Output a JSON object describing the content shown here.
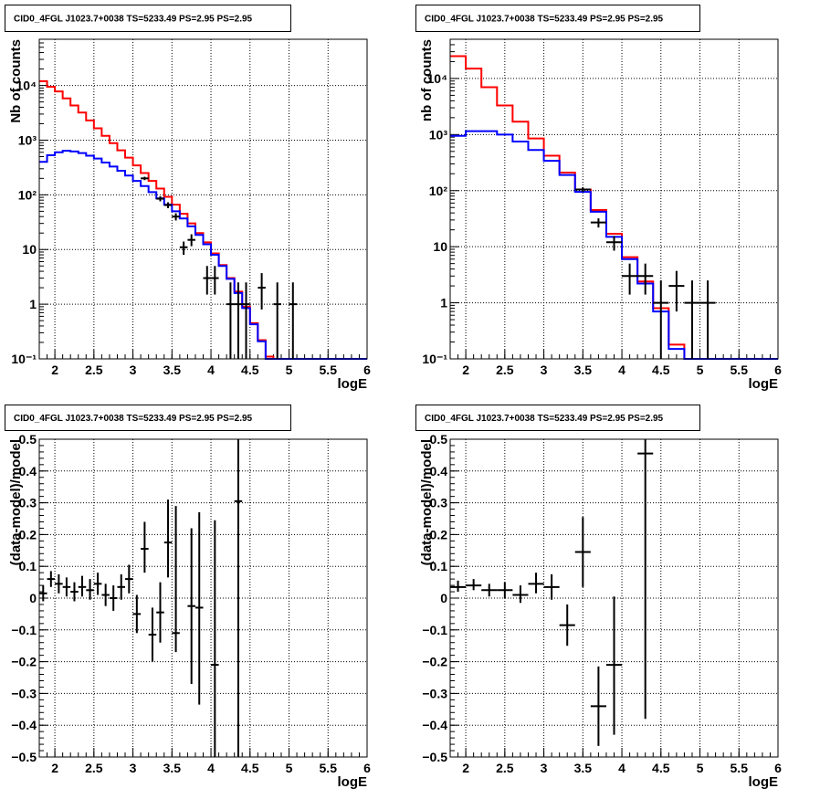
{
  "chart_data": [
    {
      "id": "top-left",
      "type": "step+errorbar",
      "title": "CID0_4FGL J1023.7+0038 TS=5233.49 PS=2.95 PS=2.95",
      "xlabel": "logE",
      "ylabel": "Nb of counts",
      "xlim": [
        1.8,
        6.0
      ],
      "ylim": [
        0.1,
        70000
      ],
      "yscale": "log",
      "grid": true,
      "xticks": [
        "2",
        "2.5",
        "3",
        "3.5",
        "4",
        "4.5",
        "5",
        "5.5",
        "6"
      ],
      "xtick_values": [
        2,
        2.5,
        3,
        3.5,
        4,
        4.5,
        5,
        5.5,
        6
      ],
      "yticks": [
        "10⁻¹",
        "1",
        "10",
        "10²",
        "10³",
        "10⁴"
      ],
      "ytick_values": [
        0.1,
        1,
        10,
        100,
        1000,
        10000
      ],
      "bin_edges": [
        1.8,
        1.9,
        2.0,
        2.1,
        2.2,
        2.3,
        2.4,
        2.5,
        2.6,
        2.7,
        2.8,
        2.9,
        3.0,
        3.1,
        3.2,
        3.3,
        3.4,
        3.5,
        3.6,
        3.7,
        3.8,
        3.9,
        4.0,
        4.1,
        4.2,
        4.3,
        4.4,
        4.5,
        4.6,
        4.7,
        4.8,
        4.9,
        5.0,
        5.1,
        5.2,
        5.3,
        5.4,
        5.5,
        5.6,
        5.7,
        5.8,
        5.9,
        6.0
      ],
      "series": [
        {
          "color": "#ff0000",
          "values": [
            12000,
            9500,
            7800,
            5800,
            4300,
            3200,
            2300,
            1650,
            1200,
            880,
            650,
            480,
            345,
            250,
            180,
            130,
            92,
            66,
            45,
            30,
            20,
            13.5,
            8.5,
            5.2,
            3.0,
            1.7,
            0.9,
            0.45,
            0.22,
            0.11,
            0.1,
            0.1,
            0.1,
            0.1,
            0.1,
            0.1,
            0.1,
            0.1,
            0.1,
            0.1,
            0.1,
            0.1
          ]
        },
        {
          "color": "#0000ff",
          "values": [
            400,
            530,
            600,
            640,
            620,
            580,
            520,
            460,
            390,
            330,
            275,
            225,
            180,
            145,
            112,
            86,
            66,
            50,
            37,
            26.5,
            18.5,
            12.5,
            8.0,
            5.0,
            2.9,
            1.6,
            0.85,
            0.43,
            0.21,
            0.1,
            0.1,
            0.1,
            0.1,
            0.1,
            0.1,
            0.1,
            0.1,
            0.1,
            0.1,
            0.1,
            0.1,
            0.1
          ]
        }
      ],
      "points": [
        {
          "x": 3.15,
          "y": 200,
          "xerr": 0.05,
          "ylo": 186,
          "yhi": 214
        },
        {
          "x": 3.35,
          "y": 85,
          "xerr": 0.05,
          "ylo": 76,
          "yhi": 94
        },
        {
          "x": 3.45,
          "y": 65,
          "xerr": 0.05,
          "ylo": 57,
          "yhi": 73
        },
        {
          "x": 3.55,
          "y": 40,
          "xerr": 0.05,
          "ylo": 34,
          "yhi": 46
        },
        {
          "x": 3.65,
          "y": 11,
          "xerr": 0.05,
          "ylo": 8,
          "yhi": 14
        },
        {
          "x": 3.75,
          "y": 15,
          "xerr": 0.05,
          "ylo": 11.5,
          "yhi": 19
        },
        {
          "x": 3.95,
          "y": 3,
          "xerr": 0.05,
          "ylo": 1.5,
          "yhi": 5
        },
        {
          "x": 4.05,
          "y": 3,
          "xerr": 0.05,
          "ylo": 1.5,
          "yhi": 5
        },
        {
          "x": 4.25,
          "y": 1,
          "xerr": 0.05,
          "ylo": 0.1,
          "yhi": 2.5
        },
        {
          "x": 4.35,
          "y": 1,
          "xerr": 0.05,
          "ylo": 0.1,
          "yhi": 2.5
        },
        {
          "x": 4.45,
          "y": 1,
          "xerr": 0.05,
          "ylo": 0.1,
          "yhi": 2.5
        },
        {
          "x": 4.65,
          "y": 2,
          "xerr": 0.05,
          "ylo": 0.8,
          "yhi": 3.7
        },
        {
          "x": 4.85,
          "y": 1,
          "xerr": 0.05,
          "ylo": 0.1,
          "yhi": 2.5
        },
        {
          "x": 5.05,
          "y": 1,
          "xerr": 0.05,
          "ylo": 0.1,
          "yhi": 2.5
        }
      ]
    },
    {
      "id": "top-right",
      "type": "step+errorbar",
      "title": "CID0_4FGL J1023.7+0038 TS=5233.49 PS=2.95 PS=2.95",
      "xlabel": "logE",
      "ylabel": "nb of counts",
      "xlim": [
        1.8,
        6.0
      ],
      "ylim": [
        0.1,
        50000
      ],
      "yscale": "log",
      "grid": true,
      "xticks": [
        "2",
        "2.5",
        "3",
        "3.5",
        "4",
        "4.5",
        "5",
        "5.5",
        "6"
      ],
      "xtick_values": [
        2,
        2.5,
        3,
        3.5,
        4,
        4.5,
        5,
        5.5,
        6
      ],
      "yticks": [
        "10⁻¹",
        "1",
        "10",
        "10²",
        "10³",
        "10⁴"
      ],
      "ytick_values": [
        0.1,
        1,
        10,
        100,
        1000,
        10000
      ],
      "bin_edges": [
        1.8,
        2.0,
        2.2,
        2.4,
        2.6,
        2.8,
        3.0,
        3.2,
        3.4,
        3.6,
        3.8,
        4.0,
        4.2,
        4.4,
        4.6,
        4.8,
        5.0,
        5.2,
        5.4,
        5.6,
        5.8,
        6.0
      ],
      "series": [
        {
          "color": "#ff0000",
          "values": [
            25000,
            15000,
            7000,
            3300,
            1700,
            850,
            420,
            210,
            105,
            45,
            17,
            6.5,
            2.4,
            0.8,
            0.18,
            0.1,
            0.1,
            0.1,
            0.1,
            0.1,
            0.1
          ]
        },
        {
          "color": "#0000ff",
          "values": [
            950,
            1150,
            1150,
            1000,
            750,
            530,
            340,
            190,
            95,
            42,
            15,
            6,
            2.2,
            0.7,
            0.15,
            0.1,
            0.1,
            0.1,
            0.1,
            0.1,
            0.1
          ]
        }
      ],
      "points": [
        {
          "x": 3.5,
          "y": 105,
          "xerr": 0.1,
          "ylo": 95,
          "yhi": 115
        },
        {
          "x": 3.7,
          "y": 27,
          "xerr": 0.1,
          "ylo": 22,
          "yhi": 32
        },
        {
          "x": 3.9,
          "y": 12,
          "xerr": 0.1,
          "ylo": 8.5,
          "yhi": 15.5
        },
        {
          "x": 4.1,
          "y": 3,
          "xerr": 0.1,
          "ylo": 1.4,
          "yhi": 5
        },
        {
          "x": 4.3,
          "y": 3,
          "xerr": 0.1,
          "ylo": 1.4,
          "yhi": 5
        },
        {
          "x": 4.5,
          "y": 1,
          "xerr": 0.1,
          "ylo": 0.1,
          "yhi": 2.5
        },
        {
          "x": 4.7,
          "y": 2,
          "xerr": 0.1,
          "ylo": 0.7,
          "yhi": 3.7
        },
        {
          "x": 4.9,
          "y": 1,
          "xerr": 0.1,
          "ylo": 0.1,
          "yhi": 2.5
        },
        {
          "x": 5.1,
          "y": 1,
          "xerr": 0.1,
          "ylo": 0.1,
          "yhi": 2.5
        }
      ]
    },
    {
      "id": "bottom-left",
      "type": "errorbar",
      "title": "CID0_4FGL J1023.7+0038 TS=5233.49 PS=2.95 PS=2.95",
      "xlabel": "logE",
      "ylabel": "(data-model)/model",
      "xlim": [
        1.8,
        6.0
      ],
      "ylim": [
        -0.5,
        0.5
      ],
      "yscale": "linear",
      "grid": true,
      "xticks": [
        "2",
        "2.5",
        "3",
        "3.5",
        "4",
        "4.5",
        "5",
        "5.5",
        "6"
      ],
      "xtick_values": [
        2,
        2.5,
        3,
        3.5,
        4,
        4.5,
        5,
        5.5,
        6
      ],
      "yticks": [
        "−0.5",
        "−0.4",
        "−0.3",
        "−0.2",
        "−0.1",
        "0",
        "0.1",
        "0.2",
        "0.3",
        "0.4",
        "0.5"
      ],
      "ytick_values": [
        -0.5,
        -0.4,
        -0.3,
        -0.2,
        -0.1,
        0,
        0.1,
        0.2,
        0.3,
        0.4,
        0.5
      ],
      "points": [
        {
          "x": 1.85,
          "y": 0.015,
          "xerr": 0.05,
          "ylo": -0.01,
          "yhi": 0.04
        },
        {
          "x": 1.95,
          "y": 0.06,
          "xerr": 0.05,
          "ylo": 0.035,
          "yhi": 0.085
        },
        {
          "x": 2.05,
          "y": 0.045,
          "xerr": 0.05,
          "ylo": 0.015,
          "yhi": 0.075
        },
        {
          "x": 2.15,
          "y": 0.035,
          "xerr": 0.05,
          "ylo": 0.005,
          "yhi": 0.065
        },
        {
          "x": 2.25,
          "y": 0.02,
          "xerr": 0.05,
          "ylo": -0.01,
          "yhi": 0.05
        },
        {
          "x": 2.35,
          "y": 0.035,
          "xerr": 0.05,
          "ylo": 0.005,
          "yhi": 0.07
        },
        {
          "x": 2.45,
          "y": 0.025,
          "xerr": 0.05,
          "ylo": -0.005,
          "yhi": 0.06
        },
        {
          "x": 2.55,
          "y": 0.045,
          "xerr": 0.05,
          "ylo": 0.01,
          "yhi": 0.08
        },
        {
          "x": 2.65,
          "y": 0.01,
          "xerr": 0.05,
          "ylo": -0.025,
          "yhi": 0.045
        },
        {
          "x": 2.75,
          "y": 0.0,
          "xerr": 0.05,
          "ylo": -0.04,
          "yhi": 0.04
        },
        {
          "x": 2.85,
          "y": 0.035,
          "xerr": 0.05,
          "ylo": -0.005,
          "yhi": 0.075
        },
        {
          "x": 2.95,
          "y": 0.06,
          "xerr": 0.05,
          "ylo": 0.015,
          "yhi": 0.105
        },
        {
          "x": 3.05,
          "y": -0.05,
          "xerr": 0.05,
          "ylo": -0.11,
          "yhi": 0.01
        },
        {
          "x": 3.15,
          "y": 0.155,
          "xerr": 0.05,
          "ylo": 0.08,
          "yhi": 0.24
        },
        {
          "x": 3.25,
          "y": -0.115,
          "xerr": 0.05,
          "ylo": -0.2,
          "yhi": -0.03
        },
        {
          "x": 3.35,
          "y": -0.045,
          "xerr": 0.05,
          "ylo": -0.14,
          "yhi": 0.05
        },
        {
          "x": 3.45,
          "y": 0.175,
          "xerr": 0.05,
          "ylo": 0.065,
          "yhi": 0.31
        },
        {
          "x": 3.55,
          "y": -0.11,
          "xerr": 0.05,
          "ylo": -0.17,
          "yhi": 0.29
        },
        {
          "x": 3.75,
          "y": -0.025,
          "xerr": 0.05,
          "ylo": -0.27,
          "yhi": 0.22
        },
        {
          "x": 3.85,
          "y": -0.03,
          "xerr": 0.05,
          "ylo": -0.335,
          "yhi": 0.27
        },
        {
          "x": 4.05,
          "y": -0.21,
          "xerr": 0.05,
          "ylo": -0.5,
          "yhi": 0.245
        },
        {
          "x": 4.35,
          "y": 0.305,
          "xerr": 0.05,
          "ylo": -0.5,
          "yhi": 0.5
        }
      ]
    },
    {
      "id": "bottom-right",
      "type": "errorbar",
      "title": "CID0_4FGL J1023.7+0038 TS=5233.49 PS=2.95 PS=2.95",
      "xlabel": "logE",
      "ylabel": "(data-model)/model",
      "xlim": [
        1.8,
        6.0
      ],
      "ylim": [
        -0.5,
        0.5
      ],
      "yscale": "linear",
      "grid": true,
      "xticks": [
        "2",
        "2.5",
        "3",
        "3.5",
        "4",
        "4.5",
        "5",
        "5.5",
        "6"
      ],
      "xtick_values": [
        2,
        2.5,
        3,
        3.5,
        4,
        4.5,
        5,
        5.5,
        6
      ],
      "yticks": [
        "−0.5",
        "−0.4",
        "−0.3",
        "−0.2",
        "−0.1",
        "0",
        "0.1",
        "0.2",
        "0.3",
        "0.4",
        "0.5"
      ],
      "ytick_values": [
        -0.5,
        -0.4,
        -0.3,
        -0.2,
        -0.1,
        0,
        0.1,
        0.2,
        0.3,
        0.4,
        0.5
      ],
      "points": [
        {
          "x": 1.9,
          "y": 0.035,
          "xerr": 0.1,
          "ylo": 0.02,
          "yhi": 0.055
        },
        {
          "x": 2.1,
          "y": 0.04,
          "xerr": 0.1,
          "ylo": 0.025,
          "yhi": 0.06
        },
        {
          "x": 2.3,
          "y": 0.025,
          "xerr": 0.1,
          "ylo": 0.005,
          "yhi": 0.045
        },
        {
          "x": 2.5,
          "y": 0.025,
          "xerr": 0.1,
          "ylo": 0.0,
          "yhi": 0.05
        },
        {
          "x": 2.7,
          "y": 0.01,
          "xerr": 0.1,
          "ylo": -0.015,
          "yhi": 0.04
        },
        {
          "x": 2.9,
          "y": 0.045,
          "xerr": 0.1,
          "ylo": 0.015,
          "yhi": 0.08
        },
        {
          "x": 3.1,
          "y": 0.035,
          "xerr": 0.1,
          "ylo": -0.005,
          "yhi": 0.075
        },
        {
          "x": 3.3,
          "y": -0.085,
          "xerr": 0.1,
          "ylo": -0.15,
          "yhi": -0.02
        },
        {
          "x": 3.5,
          "y": 0.145,
          "xerr": 0.1,
          "ylo": 0.035,
          "yhi": 0.255
        },
        {
          "x": 3.7,
          "y": -0.34,
          "xerr": 0.1,
          "ylo": -0.465,
          "yhi": -0.215
        },
        {
          "x": 3.9,
          "y": -0.21,
          "xerr": 0.1,
          "ylo": -0.43,
          "yhi": 0.005
        },
        {
          "x": 4.3,
          "y": 0.455,
          "xerr": 0.1,
          "ylo": -0.38,
          "yhi": 0.5
        }
      ]
    }
  ]
}
